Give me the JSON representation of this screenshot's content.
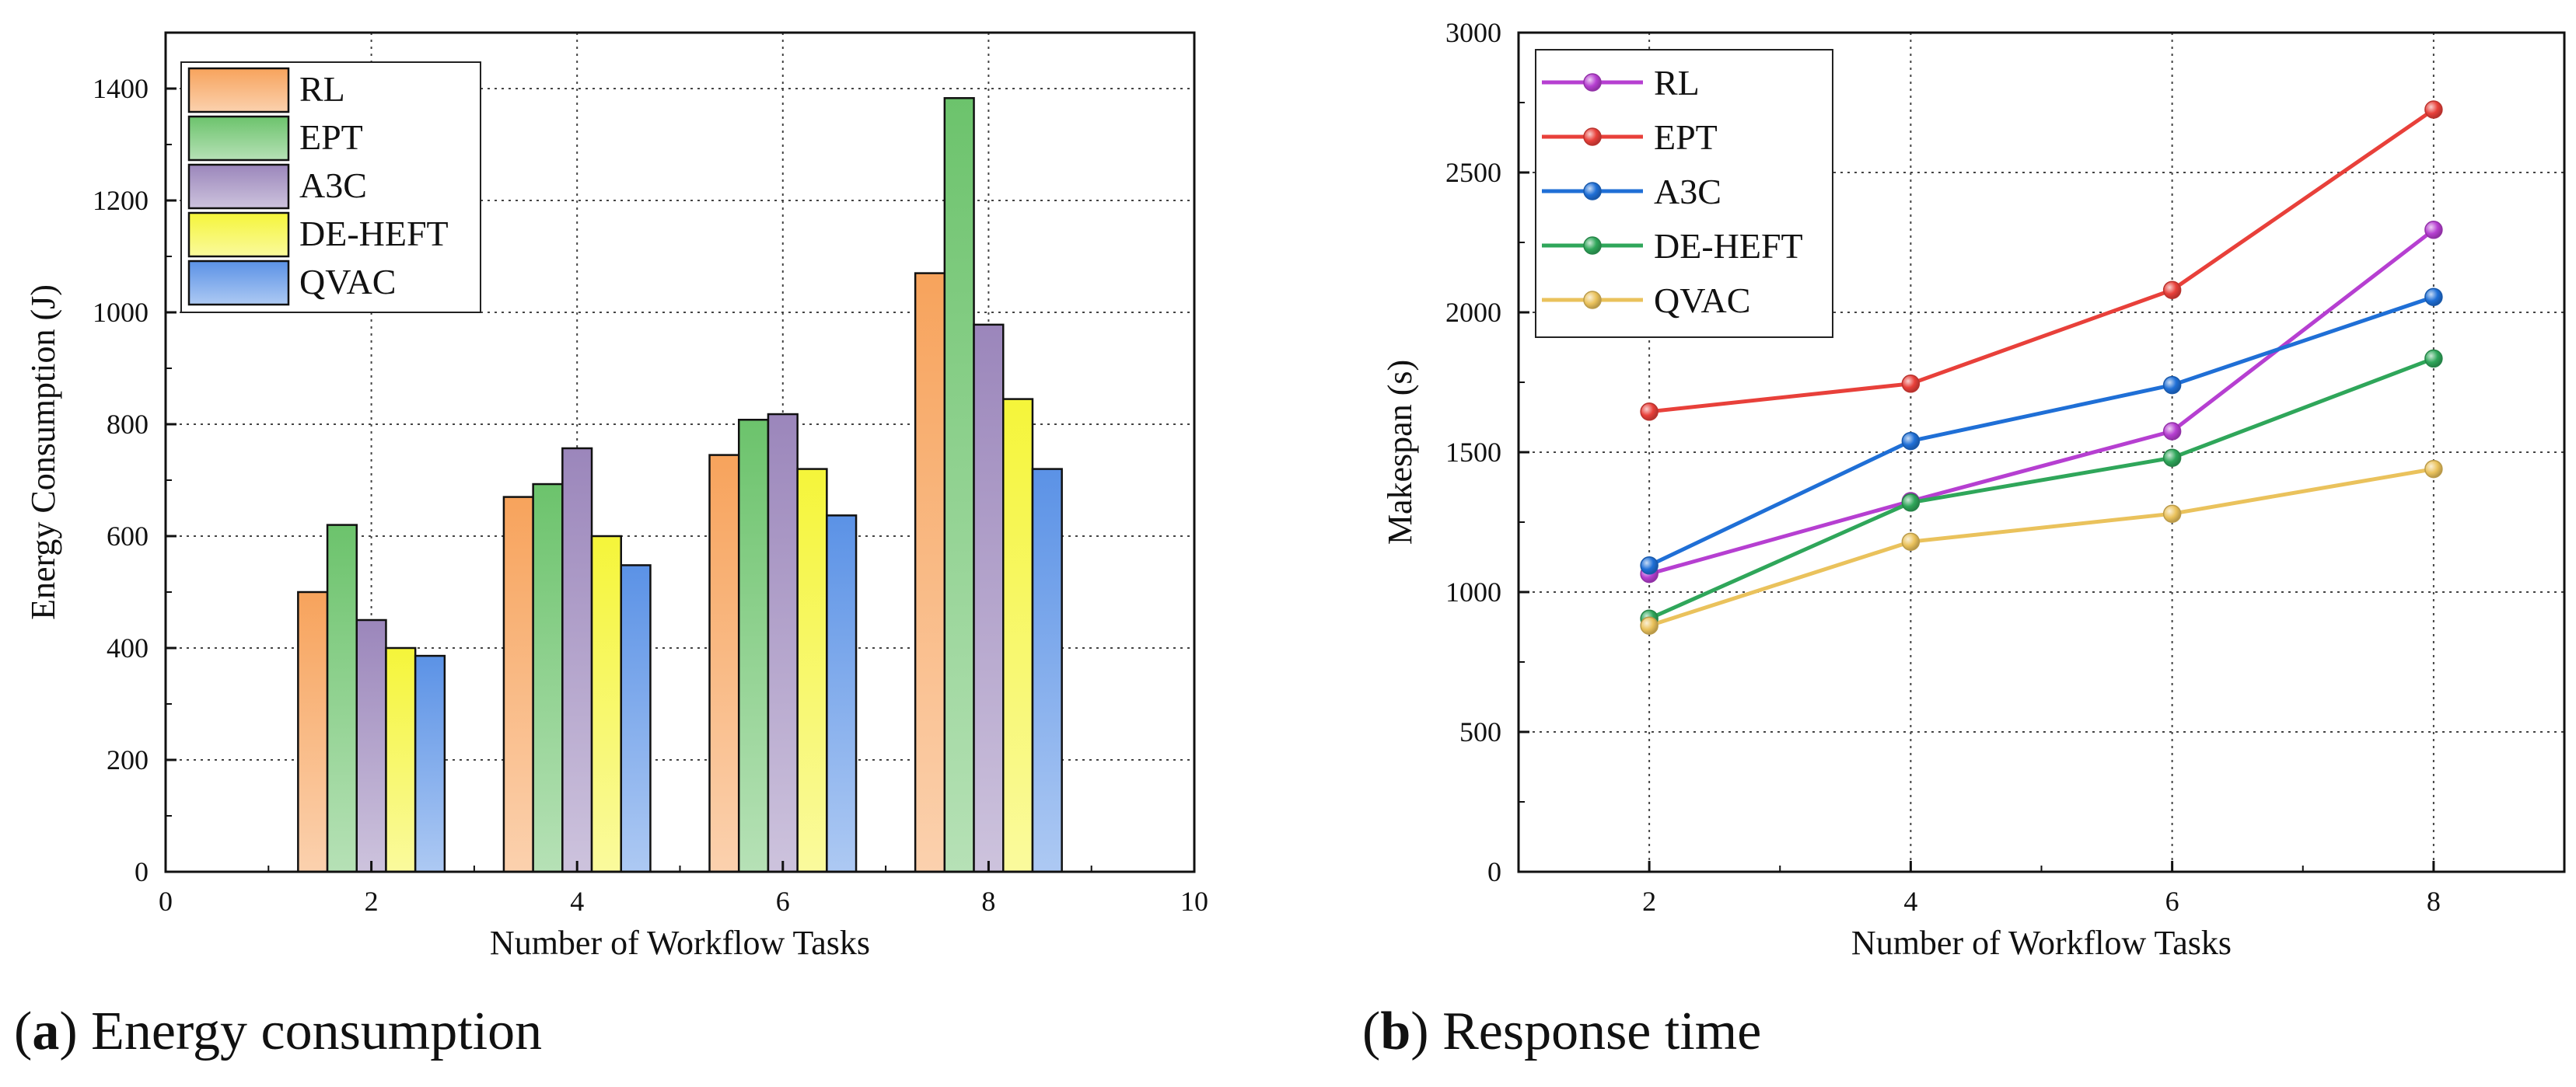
{
  "captions": [
    {
      "letter": "a",
      "text": "Energy consumption"
    },
    {
      "letter": "b",
      "text": "Response time"
    }
  ],
  "chart_data": [
    {
      "type": "bar",
      "xlabel": "Number of Workflow Tasks",
      "ylabel": "Energy Consumption (J)",
      "xlim": [
        0,
        10
      ],
      "ylim": [
        0,
        1500
      ],
      "xticks": [
        0,
        2,
        4,
        6,
        8,
        10
      ],
      "yticks": [
        0,
        200,
        400,
        600,
        800,
        1000,
        1200,
        1400
      ],
      "grid": true,
      "legend": "top-left",
      "x": [
        2,
        4,
        6,
        8
      ],
      "series": [
        {
          "name": "RL",
          "values": [
            500,
            670,
            745,
            1070
          ],
          "color": "#f7a35c"
        },
        {
          "name": "EPT",
          "values": [
            620,
            693,
            808,
            1383
          ],
          "color": "#6cc36c"
        },
        {
          "name": "A3C",
          "values": [
            450,
            757,
            818,
            978
          ],
          "color": "#9b86bb"
        },
        {
          "name": "DE-HEFT",
          "values": [
            400,
            600,
            720,
            845
          ],
          "color": "#f5f53a"
        },
        {
          "name": "QVAC",
          "values": [
            386,
            548,
            637,
            720
          ],
          "color": "#5b92e6"
        }
      ]
    },
    {
      "type": "line",
      "xlabel": "Number of Workflow Tasks",
      "ylabel": "Makespan (s)",
      "xlim": [
        1,
        9
      ],
      "ylim": [
        0,
        3000
      ],
      "xticks": [
        2,
        4,
        6,
        8
      ],
      "yticks": [
        0,
        500,
        1000,
        1500,
        2000,
        2500,
        3000
      ],
      "grid": true,
      "legend": "top-left",
      "x": [
        2,
        4,
        6,
        8
      ],
      "series": [
        {
          "name": "RL",
          "values": [
            1065,
            1325,
            1575,
            2295
          ],
          "color": "#b63fd1"
        },
        {
          "name": "EPT",
          "values": [
            1645,
            1745,
            2080,
            2725
          ],
          "color": "#e8403a"
        },
        {
          "name": "A3C",
          "values": [
            1095,
            1540,
            1740,
            2055
          ],
          "color": "#1f6fd6"
        },
        {
          "name": "DE-HEFT",
          "values": [
            905,
            1320,
            1480,
            1835
          ],
          "color": "#2fa65a"
        },
        {
          "name": "QVAC",
          "values": [
            880,
            1180,
            1280,
            1440
          ],
          "color": "#eac25c"
        }
      ]
    }
  ]
}
